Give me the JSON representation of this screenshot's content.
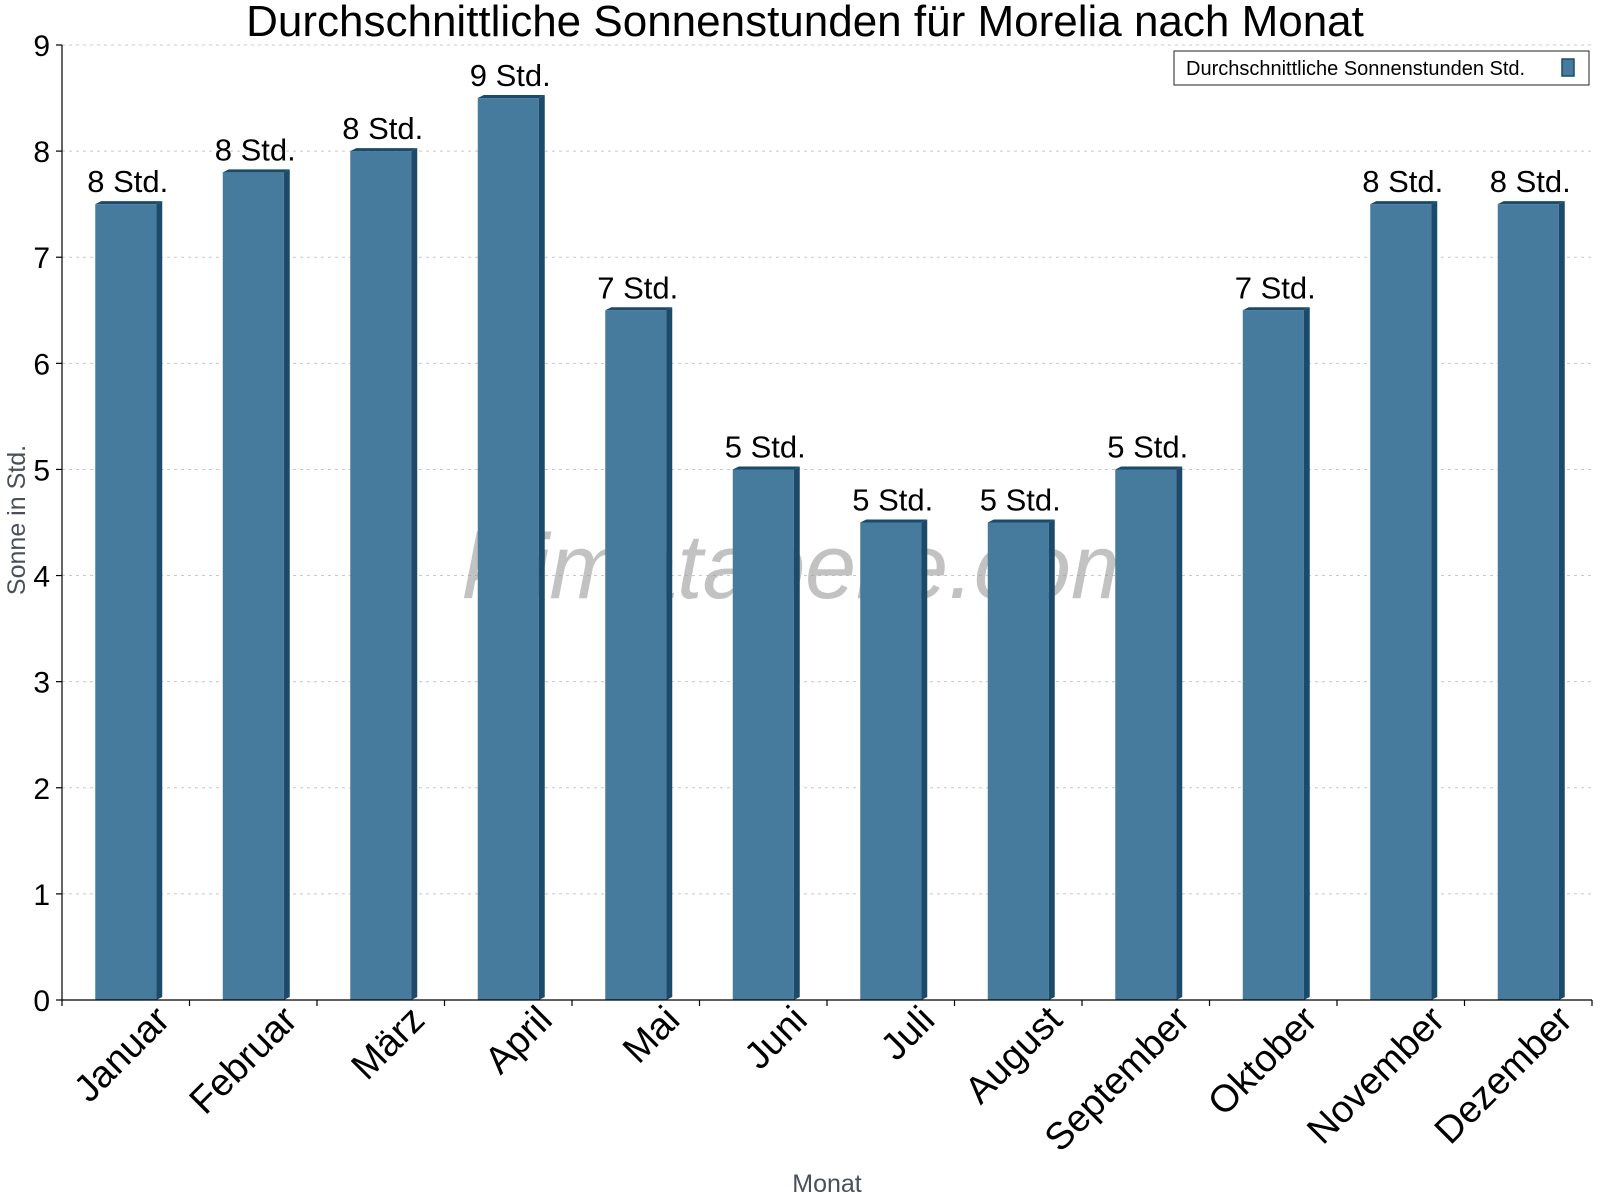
{
  "chart_data": {
    "type": "bar",
    "title": "Durchschnittliche Sonnenstunden für Morelia nach Monat",
    "xlabel": "Monat",
    "ylabel": "Sonne in Std.",
    "ylim": [
      0,
      9
    ],
    "yticks": [
      0,
      1,
      2,
      3,
      4,
      5,
      6,
      7,
      8,
      9
    ],
    "grid": true,
    "legend_position": "top-right",
    "categories": [
      "Januar",
      "Februar",
      "März",
      "April",
      "Mai",
      "Juni",
      "Juli",
      "August",
      "September",
      "Oktober",
      "November",
      "Dezember"
    ],
    "series": [
      {
        "name": "Durchschnittliche Sonnenstunden Std.",
        "color": "#467b9e",
        "values": [
          7.5,
          7.8,
          8.0,
          8.5,
          6.5,
          5.0,
          4.5,
          4.5,
          5.0,
          6.5,
          7.5,
          7.5
        ],
        "data_labels": [
          "8 Std.",
          "8 Std.",
          "8 Std.",
          "9 Std.",
          "7 Std.",
          "5 Std.",
          "5 Std.",
          "5 Std.",
          "5 Std.",
          "7 Std.",
          "8 Std.",
          "8 Std."
        ]
      }
    ],
    "watermark": "klimatabelle.com"
  }
}
